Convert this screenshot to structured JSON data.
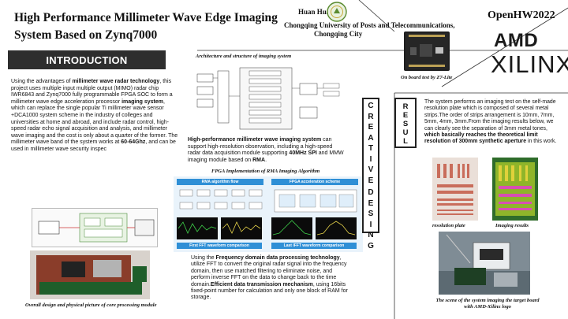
{
  "header": {
    "title": "High Performance Millimeter Wave Edge Imaging System Based on Zynq7000",
    "author": "Huan Huang",
    "affiliation_line1": "Chongqing University of Posts and Telecommunications,",
    "affiliation_line2": "Chongqing City",
    "conference": "OpenHW2022",
    "logo_amd": "AMD",
    "logo_xilinx": "XILINX"
  },
  "introduction": {
    "banner": "INTRODUCTION",
    "p1_a": "Using the advantages of ",
    "p1_b": "millimeter wave radar technology",
    "p1_c": ", this project uses multiple input multiple output (MIMO) radar chip IWR6843 and Zynq7000 fully programmable FPGA SOC to form a millimeter wave edge acceleration processor ",
    "p1_d": "imaging system",
    "p1_e": ", which can replace the single popular Ti millimeter wave sensor +DCA1000 system scheme in the industry of colleges and universities at home and abroad, and include radar control, high-speed radar echo signal acquisition and analysis, and millimeter wave imaging and the cost is only about a quarter of the former. The millimeter wave band of the system works at ",
    "p1_f": "60-64Ghz",
    "p1_g": ", and can be used in millimeter wave security inspec",
    "caption_core": "Overall design and physical picture of core processing module"
  },
  "board_caption": "On board test by Z7-Lite",
  "architecture": {
    "title": "Architecture and structure of imaging system",
    "text_a": "High-performance millimeter wave imaging system",
    "text_b": " can support high-resolution observation, including a high-speed radar data acquisition module supporting ",
    "text_c": "40MHz SPI",
    "text_d": " and MMW imaging module based on ",
    "text_e": "RMA",
    "text_f": ".",
    "rma_title": "FPGA Implementation of RMA Imaging Algorithm"
  },
  "rma_fig": {
    "flow_label": "RMA algorithm flow",
    "fpga_label": "FPGA acceleration scheme",
    "fft1_label": "First FFT waveform comparison",
    "ifft_label": "Last IFFT waveform comparison"
  },
  "rma_text": {
    "a": "Using the ",
    "b": "Frequency domain data processing technology",
    "c": ", utilize FFT to convert the original radar signal into the frequency domain, then use matched filtering to eliminate noise, and perform inverse FFT on the data to change back to the time domain.",
    "d": "Efficient data transmission mechanism",
    "e": ", using 16bits fixed-point number for calculation and only one block of RAM for storage."
  },
  "vertical": {
    "creative": [
      "C",
      "R",
      "E",
      "A",
      "T",
      "I",
      "V",
      "E"
    ],
    "design": [
      "D",
      "E",
      "S",
      "I",
      "N",
      "G"
    ],
    "result": [
      "R",
      "E",
      "S",
      "U",
      "L",
      "T"
    ]
  },
  "result": {
    "a": "The system performs an imaging test on the self-made resolution plate which is composed of several metal strips.The order of  strips arrangement is 10mm, 7mm, 5mm, 4mm, 3mm.From the imaging results below, we can clearly see the separation of 3mm metal tones, ",
    "b": "which basically reaches the theoretical limit resolution of 300mm synthetic aperture",
    "c": " in this work.",
    "cap_plate": "resolution plate",
    "cap_imaging": "Imaging results",
    "cap_scene": "The scene of the system imaging the target board with AMD-Xilinx logo"
  }
}
